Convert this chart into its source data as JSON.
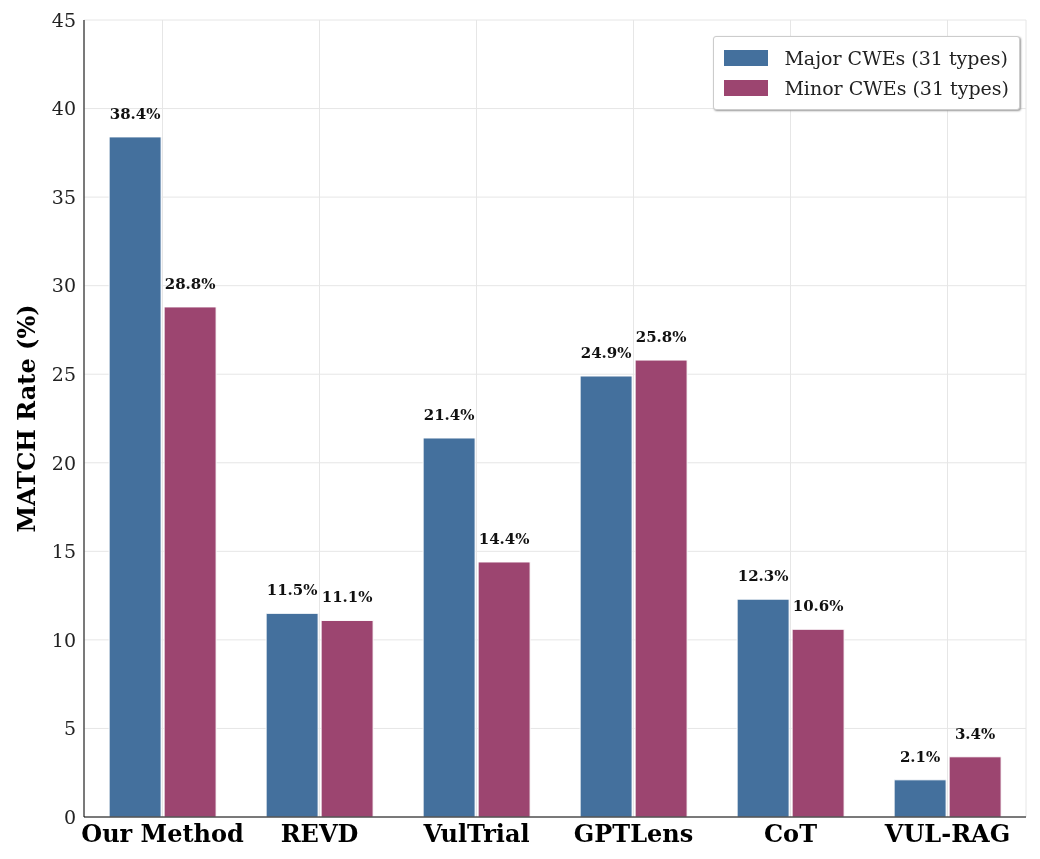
{
  "chart_data": {
    "type": "bar",
    "ylabel": "MATCH Rate (%)",
    "categories": [
      "Our Method",
      "REVD",
      "VulTrial",
      "GPTLens",
      "CoT",
      "VUL-RAG"
    ],
    "series": [
      {
        "name": "Major CWEs (31 types)",
        "color": "#44709d",
        "values": [
          38.4,
          11.5,
          21.4,
          24.9,
          12.3,
          2.1
        ],
        "value_labels": [
          "38.4%",
          "11.5%",
          "21.4%",
          "24.9%",
          "12.3%",
          "2.1%"
        ]
      },
      {
        "name": "Minor CWEs (31 types)",
        "color": "#9c4570",
        "values": [
          28.8,
          11.1,
          14.4,
          25.8,
          10.6,
          3.4
        ],
        "value_labels": [
          "28.8%",
          "11.1%",
          "14.4%",
          "25.8%",
          "10.6%",
          "3.4%"
        ]
      }
    ],
    "ylim": [
      0,
      45
    ],
    "yticks": [
      0,
      5,
      10,
      15,
      20,
      25,
      30,
      35,
      40,
      45
    ],
    "grid": true,
    "legend": "top right"
  }
}
